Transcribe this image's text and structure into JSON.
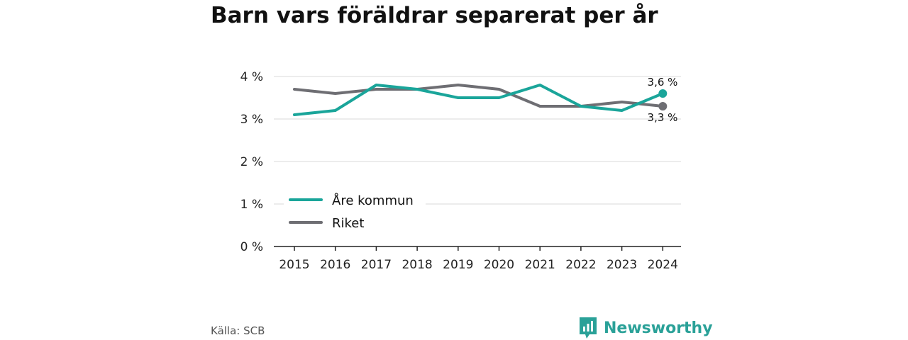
{
  "chart_data": {
    "type": "line",
    "title": "Barn vars föräldrar separerat per år",
    "x": [
      "2015",
      "2016",
      "2017",
      "2018",
      "2019",
      "2020",
      "2021",
      "2022",
      "2023",
      "2024"
    ],
    "series": [
      {
        "name": "Åre kommun",
        "color": "#1aa59a",
        "values": [
          3.1,
          3.2,
          3.8,
          3.7,
          3.5,
          3.5,
          3.8,
          3.3,
          3.2,
          3.6
        ],
        "end_label": "3,6 %"
      },
      {
        "name": "Riket",
        "color": "#6e6e73",
        "values": [
          3.7,
          3.6,
          3.7,
          3.7,
          3.8,
          3.7,
          3.3,
          3.3,
          3.4,
          3.3
        ],
        "end_label": "3,3 %"
      }
    ],
    "yticks": [
      {
        "value": 0,
        "label": "0 %"
      },
      {
        "value": 1,
        "label": "1 %"
      },
      {
        "value": 2,
        "label": "2 %"
      },
      {
        "value": 3,
        "label": "3 %"
      },
      {
        "value": 4,
        "label": "4 %"
      }
    ],
    "ylim": [
      0,
      4
    ],
    "grid": true,
    "legend_position": "bottom-left"
  },
  "footer": {
    "source": "Källa: SCB",
    "brand": "Newsworthy",
    "logo_icon": "newsworthy-logo-icon"
  }
}
